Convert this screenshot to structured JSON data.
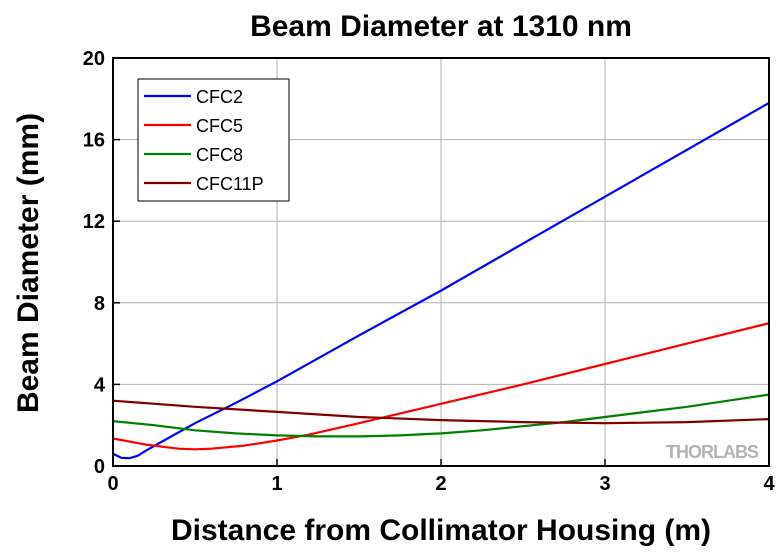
{
  "chart_data": {
    "type": "line",
    "title": "Beam Diameter at 1310 nm",
    "xlabel": "Distance from Collimator Housing (m)",
    "ylabel": "Beam Diameter (mm)",
    "xlim": [
      0,
      4
    ],
    "ylim": [
      0,
      20
    ],
    "xticks": [
      0,
      1,
      2,
      3,
      4
    ],
    "yticks": [
      0,
      4,
      8,
      12,
      16,
      20
    ],
    "grid": true,
    "legend_position": "top-left",
    "watermark": "THORLABS",
    "series": [
      {
        "name": "CFC2",
        "color": "#0000ff",
        "x": [
          0,
          0.05,
          0.1,
          0.15,
          0.2,
          0.3,
          0.4,
          0.5,
          0.75,
          1.0,
          1.5,
          2.0,
          2.5,
          3.0,
          3.5,
          4.0
        ],
        "y": [
          0.6,
          0.4,
          0.38,
          0.5,
          0.75,
          1.2,
          1.65,
          2.1,
          3.1,
          4.15,
          6.4,
          8.6,
          10.9,
          13.2,
          15.5,
          17.8
        ]
      },
      {
        "name": "CFC5",
        "color": "#ff0000",
        "x": [
          0,
          0.2,
          0.4,
          0.5,
          0.6,
          0.8,
          1.0,
          1.2,
          1.5,
          2.0,
          2.5,
          3.0,
          3.5,
          4.0
        ],
        "y": [
          1.35,
          1.05,
          0.85,
          0.82,
          0.85,
          1.0,
          1.25,
          1.55,
          2.1,
          3.05,
          4.0,
          5.0,
          6.0,
          7.0
        ]
      },
      {
        "name": "CFC8",
        "color": "#008000",
        "x": [
          0,
          0.25,
          0.5,
          0.75,
          1.0,
          1.25,
          1.5,
          1.75,
          2.0,
          2.25,
          2.5,
          2.75,
          3.0,
          3.25,
          3.5,
          3.75,
          4.0
        ],
        "y": [
          2.2,
          2.0,
          1.75,
          1.6,
          1.5,
          1.45,
          1.45,
          1.5,
          1.6,
          1.75,
          1.95,
          2.15,
          2.4,
          2.65,
          2.9,
          3.2,
          3.5
        ]
      },
      {
        "name": "CFC11P",
        "color": "#800000",
        "x": [
          0,
          0.5,
          1.0,
          1.5,
          2.0,
          2.5,
          3.0,
          3.5,
          4.0
        ],
        "y": [
          3.2,
          2.9,
          2.65,
          2.4,
          2.25,
          2.15,
          2.1,
          2.15,
          2.3
        ]
      }
    ]
  }
}
